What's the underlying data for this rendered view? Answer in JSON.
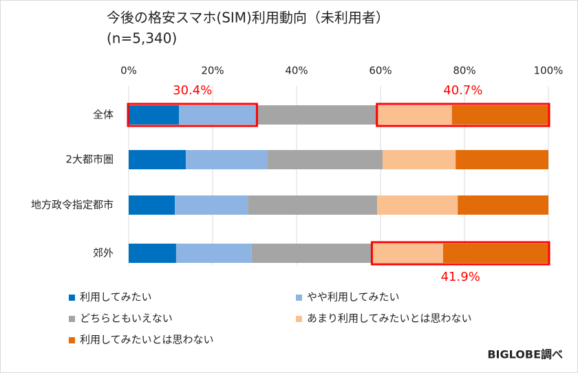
{
  "chart_data": {
    "type": "stacked-barh",
    "title": "今後の格安スマホ(SIM)利用動向（未利用者）",
    "subtitle": "(n=5,340)",
    "categories": [
      "全体",
      "2大都市圏",
      "地方政令指定都市",
      "郊外"
    ],
    "series": [
      {
        "name": "利用してみたい",
        "color": "#0070c0",
        "values": [
          12.0,
          13.6,
          11.0,
          11.3
        ]
      },
      {
        "name": "やや利用してみたい",
        "color": "#8db4e2",
        "values": [
          18.4,
          19.4,
          17.4,
          18.0
        ]
      },
      {
        "name": "どちらともいえない",
        "color": "#a5a5a5",
        "values": [
          28.9,
          27.5,
          30.8,
          28.8
        ]
      },
      {
        "name": "あまり利用してみたいとは思わない",
        "color": "#fac090",
        "values": [
          17.7,
          17.4,
          19.2,
          16.8
        ]
      },
      {
        "name": "利用してみたいとは思わない",
        "color": "#e26b0a",
        "values": [
          23.0,
          22.1,
          21.6,
          25.1
        ]
      }
    ],
    "xlim": [
      0,
      100
    ],
    "xticks": [
      {
        "value": 0,
        "label": "0%"
      },
      {
        "value": 20,
        "label": "20%"
      },
      {
        "value": 40,
        "label": "40%"
      },
      {
        "value": 60,
        "label": "60%"
      },
      {
        "value": 80,
        "label": "80%"
      },
      {
        "value": 100,
        "label": "100%"
      }
    ],
    "grid": true,
    "annotations": [
      "30.4%",
      "40.7%",
      "41.9%"
    ],
    "source": "BIGLOBE調べ"
  }
}
